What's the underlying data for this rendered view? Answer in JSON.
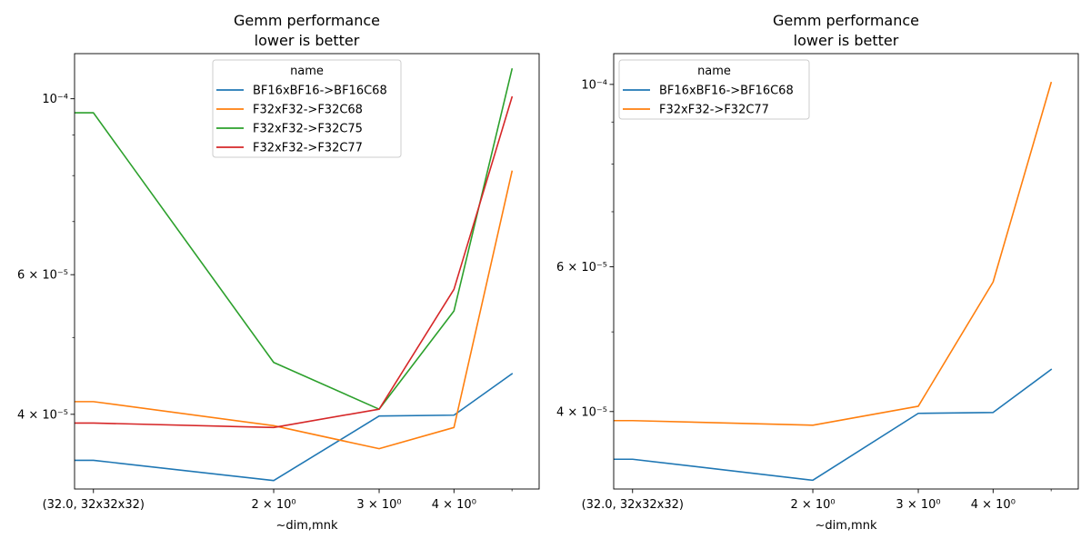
{
  "chart_data": [
    {
      "type": "line",
      "title": "Gemm performance",
      "subtitle": "lower is better",
      "xlabel": "~dim,mnk",
      "ylabel": "",
      "y_scale": "log",
      "x_scale": "log",
      "xlim": [
        0.93,
        5.55
      ],
      "ylim": [
        3.22e-05,
        0.000114
      ],
      "grid": false,
      "legend": {
        "title": "name",
        "placement": "top-center"
      },
      "x_ticks": [
        {
          "value": 1.0,
          "label": "(32.0, 32x32x32)"
        },
        {
          "value": 2.0,
          "label": "2 × 10⁰"
        },
        {
          "value": 3.0,
          "label": "3 × 10⁰"
        },
        {
          "value": 4.0,
          "label": "4 × 10⁰"
        }
      ],
      "y_ticks": [
        {
          "value": 0.0001,
          "label": "10⁻⁴"
        },
        {
          "value": 6e-05,
          "label": "6 × 10⁻⁵"
        },
        {
          "value": 4e-05,
          "label": "4 × 10⁻⁵"
        }
      ],
      "y_minor_ticks": [
        3e-05,
        5e-05,
        7e-05,
        8e-05,
        9e-05
      ],
      "x_minor_ticks": [
        5.0
      ],
      "x": [
        0.9,
        1.0,
        2.0,
        3.0,
        4.0,
        5.0
      ],
      "series": [
        {
          "name": "BF16xBF16->BF16C68",
          "color": "#1f77b4",
          "values": [
            3.5e-05,
            3.5e-05,
            3.3e-05,
            3.98e-05,
            3.99e-05,
            4.5e-05
          ]
        },
        {
          "name": "F32xF32->F32C68",
          "color": "#ff7f0e",
          "values": [
            4.15e-05,
            4.15e-05,
            3.87e-05,
            3.62e-05,
            3.85e-05,
            8.1e-05
          ]
        },
        {
          "name": "F32xF32->F32C75",
          "color": "#2ca02c",
          "values": [
            9.6e-05,
            9.6e-05,
            4.65e-05,
            4.06e-05,
            5.4e-05,
            0.000109
          ]
        },
        {
          "name": "F32xF32->F32C77",
          "color": "#d62728",
          "values": [
            3.9e-05,
            3.9e-05,
            3.85e-05,
            4.06e-05,
            5.75e-05,
            0.0001005
          ]
        }
      ]
    },
    {
      "type": "line",
      "title": "Gemm performance",
      "subtitle": "lower is better",
      "xlabel": "~dim,mnk",
      "ylabel": "",
      "y_scale": "log",
      "x_scale": "log",
      "xlim": [
        0.93,
        5.55
      ],
      "ylim": [
        3.22e-05,
        0.000109
      ],
      "grid": false,
      "legend": {
        "title": "name",
        "placement": "top-left"
      },
      "x_ticks": [
        {
          "value": 1.0,
          "label": "(32.0, 32x32x32)"
        },
        {
          "value": 2.0,
          "label": "2 × 10⁰"
        },
        {
          "value": 3.0,
          "label": "3 × 10⁰"
        },
        {
          "value": 4.0,
          "label": "4 × 10⁰"
        }
      ],
      "y_ticks": [
        {
          "value": 0.0001,
          "label": "10⁻⁴"
        },
        {
          "value": 6e-05,
          "label": "6 × 10⁻⁵"
        },
        {
          "value": 4e-05,
          "label": "4 × 10⁻⁵"
        }
      ],
      "y_minor_ticks": [
        3e-05,
        5e-05,
        7e-05,
        8e-05,
        9e-05
      ],
      "x_minor_ticks": [
        5.0
      ],
      "x": [
        0.9,
        1.0,
        2.0,
        3.0,
        4.0,
        5.0
      ],
      "series": [
        {
          "name": "BF16xBF16->BF16C68",
          "color": "#1f77b4",
          "values": [
            3.5e-05,
            3.5e-05,
            3.3e-05,
            3.98e-05,
            3.99e-05,
            4.5e-05
          ]
        },
        {
          "name": "F32xF32->F32C77",
          "color": "#ff7f0e",
          "values": [
            3.9e-05,
            3.9e-05,
            3.85e-05,
            4.06e-05,
            5.75e-05,
            0.0001005
          ]
        }
      ]
    }
  ]
}
